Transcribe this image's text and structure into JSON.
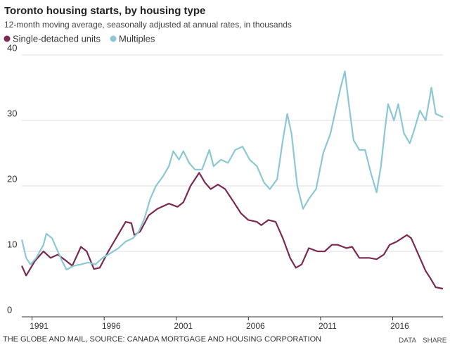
{
  "chart_data": {
    "type": "line",
    "title": "Toronto housing starts, by housing type",
    "subtitle": "12-month moving average, seasonally adjusted at annual rates, in thousands",
    "source": "THE GLOBE AND MAIL, SOURCE: CANADA MORTGAGE AND HOUSING CORPORATION",
    "series": [
      {
        "name": "Single-detached units",
        "color": "#7b2a52",
        "x": [
          1989.8,
          1990.1,
          1990.7,
          1991.3,
          1991.8,
          1992.3,
          1992.9,
          1993.3,
          1993.9,
          1994.3,
          1994.8,
          1995.2,
          1995.8,
          1996.6,
          1997.0,
          1997.4,
          1997.6,
          1998.0,
          1998.6,
          1999.2,
          2000.0,
          2000.6,
          2001.0,
          2001.5,
          2002.1,
          2002.5,
          2002.9,
          2003.4,
          2003.9,
          2004.5,
          2005.0,
          2005.5,
          2006.1,
          2006.4,
          2006.9,
          2007.4,
          2007.9,
          2008.4,
          2008.8,
          2009.2,
          2009.7,
          2010.3,
          2010.8,
          2011.3,
          2011.7,
          2012.3,
          2012.7,
          2013.2,
          2013.9,
          2014.4,
          2014.9,
          2015.3,
          2015.8,
          2016.5,
          2016.8,
          2017.3,
          2017.8,
          2018.1,
          2018.5,
          2019.0
        ],
        "values": [
          7.8,
          6.3,
          8.5,
          10,
          9,
          9.5,
          8.5,
          7.8,
          10.7,
          10,
          7.3,
          7.5,
          10,
          13,
          14.5,
          14.3,
          12.5,
          13,
          15.5,
          16.5,
          17.3,
          16.8,
          17.5,
          20,
          22,
          20.5,
          19.5,
          20.2,
          19.5,
          17.5,
          15.8,
          14.8,
          14.5,
          14,
          14.8,
          14.5,
          12,
          9,
          7.5,
          8,
          10.5,
          10,
          10,
          11,
          11,
          10.5,
          10.7,
          9,
          9,
          8.8,
          9.5,
          11,
          11.5,
          12.5,
          12,
          9.5,
          7,
          6,
          4.5,
          4.3
        ]
      },
      {
        "name": "Multiples",
        "color": "#8cc8d3",
        "x": [
          1989.8,
          1990.1,
          1990.4,
          1990.8,
          1991.3,
          1991.5,
          1991.9,
          1992.2,
          1992.6,
          1992.9,
          1993.4,
          1993.9,
          1994.4,
          1994.9,
          1995.4,
          1995.8,
          1996.5,
          1997.0,
          1997.5,
          1997.9,
          1998.3,
          1998.7,
          1999.1,
          1999.6,
          2000.0,
          2000.3,
          2000.7,
          2001.0,
          2001.4,
          2001.8,
          2002.3,
          2002.8,
          2003.1,
          2003.6,
          2004.1,
          2004.6,
          2005.1,
          2005.6,
          2006.1,
          2006.6,
          2007.0,
          2007.5,
          2007.9,
          2008.2,
          2008.5,
          2008.9,
          2009.3,
          2009.7,
          2010.2,
          2010.7,
          2011.2,
          2011.6,
          2011.9,
          2012.2,
          2012.5,
          2012.8,
          2013.2,
          2013.6,
          2014.0,
          2014.4,
          2014.7,
          2015.0,
          2015.2,
          2015.6,
          2015.9,
          2016.3,
          2016.7,
          2017.0,
          2017.4,
          2017.8,
          2018.2,
          2018.5,
          2019.0
        ],
        "values": [
          11.8,
          9,
          8,
          9,
          11,
          12.7,
          12,
          10.5,
          8.5,
          7.2,
          7.8,
          8,
          8.3,
          8,
          9,
          9.5,
          10.5,
          11.5,
          12,
          13,
          15,
          18,
          20,
          21.5,
          23,
          25.3,
          24,
          25.3,
          23.5,
          22.5,
          22.5,
          25.5,
          23,
          24,
          23.5,
          25.5,
          26,
          24,
          23,
          20.5,
          19.5,
          21,
          27,
          31,
          28,
          20,
          16.5,
          18,
          19.5,
          25,
          28,
          32,
          35,
          37.5,
          32,
          27,
          25.5,
          25.5,
          22,
          19,
          23,
          29,
          32.5,
          30,
          32.5,
          28,
          26.5,
          28.5,
          31.5,
          30,
          35,
          31,
          30.5
        ]
      }
    ],
    "xlim": [
      1989.8,
      2019.0
    ],
    "xticks": [
      1991,
      1996,
      2001,
      2006,
      2011,
      2016
    ],
    "ylim": [
      0,
      40
    ],
    "yticks": [
      0,
      10,
      20,
      30,
      40
    ],
    "grid": true
  },
  "actions": [
    "DATA",
    "SHARE"
  ]
}
